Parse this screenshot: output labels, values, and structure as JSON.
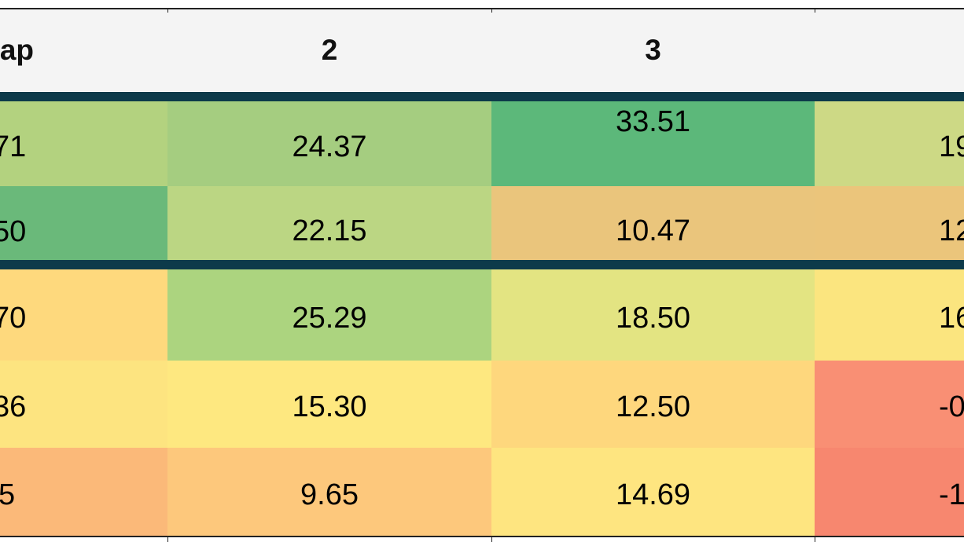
{
  "header": {
    "col_cap": "ap",
    "col_2": "2",
    "col_3": "3"
  },
  "rows": [
    {
      "c1": "71",
      "c2": "24.37",
      "c3": "33.51",
      "c4": "19"
    },
    {
      "c1": "50",
      "c2": "22.15",
      "c3": "10.47",
      "c4": "12"
    },
    {
      "c1": "70",
      "c2": "25.29",
      "c3": "18.50",
      "c4": "16"
    },
    {
      "c1": "36",
      "c2": "15.30",
      "c3": "12.50",
      "c4": "-0"
    },
    {
      "c1": "5",
      "c2": "9.65",
      "c3": "14.69",
      "c4": "-1"
    }
  ],
  "colors": {
    "r1": [
      "#b3d27f",
      "#a5cd80",
      "#5cb87a",
      "#cdd985"
    ],
    "r2": [
      "#6ab97a",
      "#bbd683",
      "#eac57c",
      "#ebc57b"
    ],
    "r3": [
      "#fed97d",
      "#acd47f",
      "#e3e482",
      "#fbe57f"
    ],
    "r4": [
      "#fde480",
      "#fee880",
      "#fed77d",
      "#f98f74"
    ],
    "r5": [
      "#fbb979",
      "#fdc87c",
      "#fee580",
      "#f7876f"
    ],
    "rule": "#0d3a4a",
    "header_bg": "#f4f4f4"
  }
}
